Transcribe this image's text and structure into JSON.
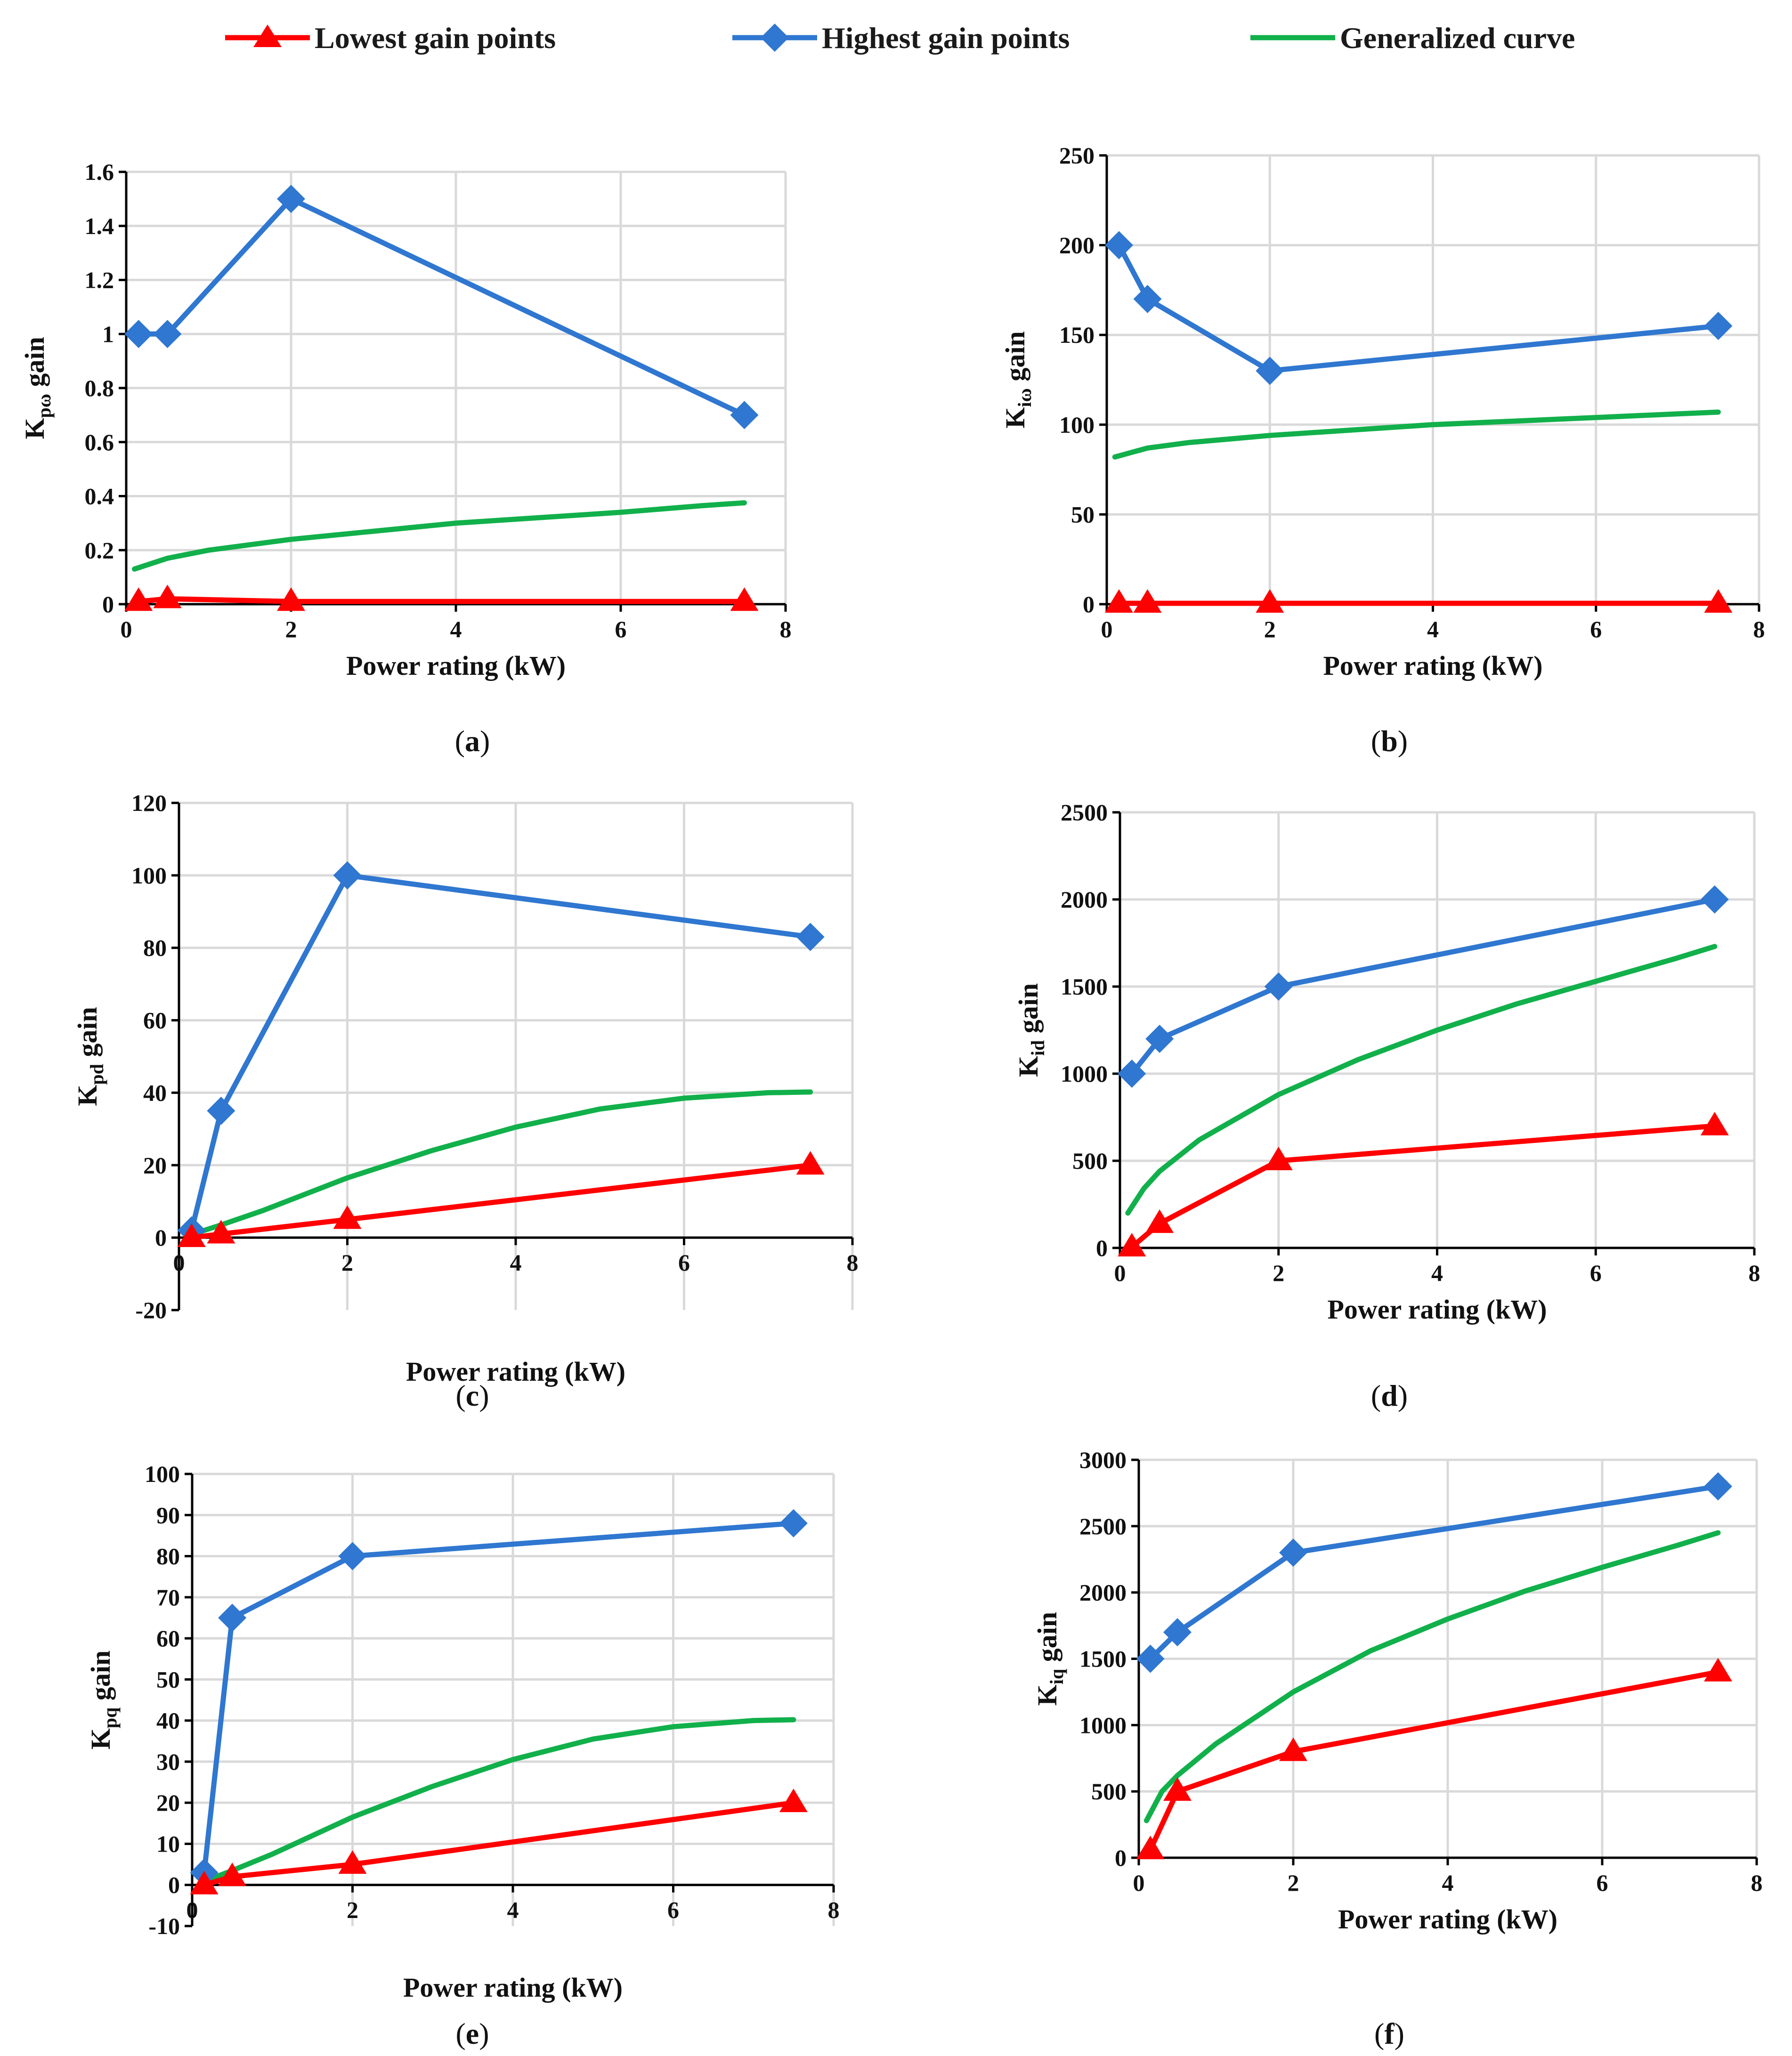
{
  "legend": {
    "items": [
      {
        "label": "Lowest gain points",
        "color": "#ff0000",
        "marker": "triangle"
      },
      {
        "label": "Highest gain points",
        "color": "#2f77d0",
        "marker": "diamond"
      },
      {
        "label": "Generalized curve",
        "color": "#11b04b",
        "marker": "none"
      }
    ]
  },
  "chart_data": [
    {
      "type": "line",
      "panel_label": "a",
      "xlabel": "Power rating (kW)",
      "ylabel_main": "K",
      "ylabel_sub": "pω",
      "ylabel_rest": " gain",
      "xlim": [
        0,
        8
      ],
      "ylim": [
        0,
        1.6
      ],
      "x_ticks": [
        "0",
        "2",
        "4",
        "6",
        "8"
      ],
      "x_tick_values": [
        0,
        2,
        4,
        6,
        8
      ],
      "y_ticks": [
        "0",
        "0.2",
        "0.4",
        "0.6",
        "0.8",
        "1",
        "1.2",
        "1.4",
        "1.6"
      ],
      "y_tick_values": [
        0,
        0.2,
        0.4,
        0.6,
        0.8,
        1,
        1.2,
        1.4,
        1.6
      ],
      "series": [
        {
          "name": "Lowest gain points",
          "x": [
            0.15,
            0.5,
            2,
            7.5
          ],
          "y": [
            0.01,
            0.02,
            0.01,
            0.01
          ]
        },
        {
          "name": "Highest gain points",
          "x": [
            0.15,
            0.5,
            2,
            7.5
          ],
          "y": [
            1.0,
            1.0,
            1.5,
            0.7
          ]
        },
        {
          "name": "Generalized curve",
          "x": [
            0.1,
            0.5,
            1,
            2,
            3,
            4,
            5,
            6,
            7,
            7.5
          ],
          "y": [
            0.13,
            0.17,
            0.2,
            0.24,
            0.27,
            0.3,
            0.32,
            0.34,
            0.365,
            0.375
          ]
        }
      ]
    },
    {
      "type": "line",
      "panel_label": "b",
      "xlabel": "Power rating (kW)",
      "ylabel_main": "K",
      "ylabel_sub": "iω",
      "ylabel_rest": " gain",
      "xlim": [
        0,
        8
      ],
      "ylim": [
        0,
        250
      ],
      "x_ticks": [
        "0",
        "2",
        "4",
        "6",
        "8"
      ],
      "x_tick_values": [
        0,
        2,
        4,
        6,
        8
      ],
      "y_ticks": [
        "0",
        "50",
        "100",
        "150",
        "200",
        "250"
      ],
      "y_tick_values": [
        0,
        50,
        100,
        150,
        200,
        250
      ],
      "series": [
        {
          "name": "Lowest gain points",
          "x": [
            0.15,
            0.5,
            2,
            7.5
          ],
          "y": [
            0.5,
            0.5,
            0.5,
            0.5
          ]
        },
        {
          "name": "Highest gain points",
          "x": [
            0.15,
            0.5,
            2,
            7.5
          ],
          "y": [
            200,
            170,
            130,
            155
          ]
        },
        {
          "name": "Generalized curve",
          "x": [
            0.1,
            0.5,
            1,
            2,
            3,
            4,
            5,
            6,
            7,
            7.5
          ],
          "y": [
            82,
            87,
            90,
            94,
            97,
            100,
            102,
            104,
            106,
            107
          ]
        }
      ]
    },
    {
      "type": "line",
      "panel_label": "c",
      "xlabel": "Power rating (kW)",
      "ylabel_main": "K",
      "ylabel_sub": "pd",
      "ylabel_rest": " gain",
      "xlim": [
        0,
        8
      ],
      "ylim": [
        -20,
        120
      ],
      "x_ticks": [
        "0",
        "2",
        "4",
        "6",
        "8"
      ],
      "x_tick_values": [
        0,
        2,
        4,
        6,
        8
      ],
      "y_ticks": [
        "-20",
        "0",
        "20",
        "40",
        "60",
        "80",
        "100",
        "120"
      ],
      "y_tick_values": [
        -20,
        0,
        20,
        40,
        60,
        80,
        100,
        120
      ],
      "series": [
        {
          "name": "Lowest gain points",
          "x": [
            0.15,
            0.5,
            2,
            7.5
          ],
          "y": [
            0,
            1,
            5,
            20
          ]
        },
        {
          "name": "Highest gain points",
          "x": [
            0.15,
            0.5,
            2,
            7.5
          ],
          "y": [
            2,
            35,
            100,
            83
          ]
        },
        {
          "name": "Generalized curve",
          "x": [
            0.1,
            0.5,
            1,
            2,
            3,
            4,
            5,
            6,
            7,
            7.5
          ],
          "y": [
            0.5,
            3.5,
            7.5,
            16.5,
            24,
            30.5,
            35.5,
            38.5,
            40,
            40.2
          ]
        }
      ]
    },
    {
      "type": "line",
      "panel_label": "d",
      "xlabel": "Power rating (kW)",
      "ylabel_main": "K",
      "ylabel_sub": "id",
      "ylabel_rest": " gain",
      "xlim": [
        0,
        8
      ],
      "ylim": [
        0,
        2500
      ],
      "x_ticks": [
        "0",
        "2",
        "4",
        "6",
        "8"
      ],
      "x_tick_values": [
        0,
        2,
        4,
        6,
        8
      ],
      "y_ticks": [
        "0",
        "500",
        "1000",
        "1500",
        "2000",
        "2500"
      ],
      "y_tick_values": [
        0,
        500,
        1000,
        1500,
        2000,
        2500
      ],
      "series": [
        {
          "name": "Lowest gain points",
          "x": [
            0.15,
            0.5,
            2,
            7.5
          ],
          "y": [
            5,
            140,
            500,
            700
          ]
        },
        {
          "name": "Highest gain points",
          "x": [
            0.15,
            0.5,
            2,
            7.5
          ],
          "y": [
            1000,
            1200,
            1500,
            2000
          ]
        },
        {
          "name": "Generalized curve",
          "x": [
            0.1,
            0.3,
            0.5,
            1,
            2,
            3,
            4,
            5,
            6,
            7,
            7.5
          ],
          "y": [
            200,
            340,
            440,
            620,
            880,
            1080,
            1250,
            1400,
            1530,
            1660,
            1730
          ]
        }
      ]
    },
    {
      "type": "line",
      "panel_label": "e",
      "xlabel": "Power rating (kW)",
      "ylabel_main": "K",
      "ylabel_sub": "pq",
      "ylabel_rest": " gain",
      "xlim": [
        0,
        8
      ],
      "ylim": [
        -10,
        100
      ],
      "x_ticks": [
        "0",
        "2",
        "4",
        "6",
        "8"
      ],
      "x_tick_values": [
        0,
        2,
        4,
        6,
        8
      ],
      "y_ticks": [
        "-10",
        "0",
        "10",
        "20",
        "30",
        "40",
        "50",
        "60",
        "70",
        "80",
        "90",
        "100"
      ],
      "y_tick_values": [
        -10,
        0,
        10,
        20,
        30,
        40,
        50,
        60,
        70,
        80,
        90,
        100
      ],
      "series": [
        {
          "name": "Lowest gain points",
          "x": [
            0.15,
            0.5,
            2,
            7.5
          ],
          "y": [
            0,
            2,
            5,
            20
          ]
        },
        {
          "name": "Highest gain points",
          "x": [
            0.15,
            0.5,
            2,
            7.5
          ],
          "y": [
            3,
            65,
            80,
            88
          ]
        },
        {
          "name": "Generalized curve",
          "x": [
            0.1,
            0.5,
            1,
            2,
            3,
            4,
            5,
            6,
            7,
            7.5
          ],
          "y": [
            0.5,
            3.5,
            7.5,
            16.5,
            24,
            30.5,
            35.5,
            38.5,
            40,
            40.2
          ]
        }
      ]
    },
    {
      "type": "line",
      "panel_label": "f",
      "xlabel": "Power rating (kW)",
      "ylabel_main": "K",
      "ylabel_sub": "iq",
      "ylabel_rest": " gain",
      "xlim": [
        0,
        8
      ],
      "ylim": [
        0,
        3000
      ],
      "x_ticks": [
        "0",
        "2",
        "4",
        "6",
        "8"
      ],
      "x_tick_values": [
        0,
        2,
        4,
        6,
        8
      ],
      "y_ticks": [
        "0",
        "500",
        "1000",
        "1500",
        "2000",
        "2500",
        "3000"
      ],
      "y_tick_values": [
        0,
        500,
        1000,
        1500,
        2000,
        2500,
        3000
      ],
      "series": [
        {
          "name": "Lowest gain points",
          "x": [
            0.15,
            0.5,
            2,
            7.5
          ],
          "y": [
            60,
            500,
            800,
            1400
          ]
        },
        {
          "name": "Highest gain points",
          "x": [
            0.15,
            0.5,
            2,
            7.5
          ],
          "y": [
            1500,
            1700,
            2300,
            2800
          ]
        },
        {
          "name": "Generalized curve",
          "x": [
            0.1,
            0.3,
            0.5,
            1,
            2,
            3,
            4,
            5,
            6,
            7,
            7.5
          ],
          "y": [
            280,
            500,
            620,
            860,
            1250,
            1560,
            1800,
            2010,
            2190,
            2360,
            2450
          ]
        }
      ]
    }
  ]
}
